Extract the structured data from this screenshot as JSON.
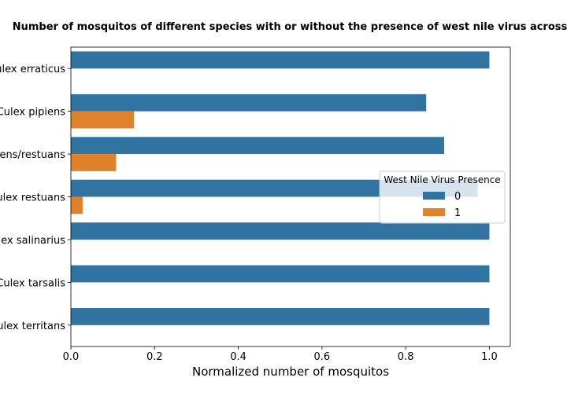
{
  "chart_data": {
    "type": "bar",
    "orientation": "horizontal",
    "title": "Number of mosquitos of different species with or without the presence of west nile virus across",
    "xlabel": "Normalized number of mosquitos",
    "ylabel": "",
    "xlim": [
      0,
      1.05
    ],
    "xticks": [
      "0.0",
      "0.2",
      "0.4",
      "0.6",
      "0.8",
      "1.0"
    ],
    "xtick_values": [
      0,
      0.2,
      0.4,
      0.6,
      0.8,
      1.0
    ],
    "categories": [
      "Culex erraticus",
      "Culex pipiens",
      "Culex pipiens/restuans",
      "Culex restuans",
      "Culex salinarius",
      "Culex tarsalis",
      "Culex territans"
    ],
    "series": [
      {
        "name": "0",
        "color": "#3274a1",
        "values": [
          1.0,
          0.849,
          0.892,
          0.972,
          1.0,
          1.0,
          1.0
        ]
      },
      {
        "name": "1",
        "color": "#e1812c",
        "values": [
          0.0,
          0.151,
          0.108,
          0.028,
          0.0,
          0.0,
          0.0
        ]
      }
    ],
    "legend": {
      "title": "West Nile Virus Presence",
      "placement": "center-right"
    },
    "grid": false
  }
}
